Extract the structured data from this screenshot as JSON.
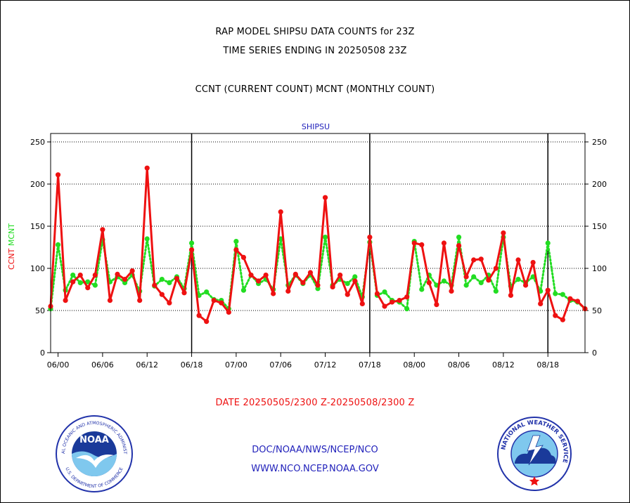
{
  "header": {
    "line1": "RAP MODEL SHIPSU DATA COUNTS for 23Z",
    "line2": "TIME SERIES ENDING IN 20250508 23Z",
    "line3": "CCNT (CURRENT COUNT) MCNT (MONTHLY COUNT)"
  },
  "footer": {
    "date_range": "DATE 20250505/2300 Z-20250508/2300 Z",
    "link1": "DOC/NOAA/NWS/NCEP/NCO",
    "link2": "WWW.NCO.NCEP.NOAA.GOV",
    "noaa_logo_text": "NOAA",
    "noaa_ring_text": "NATIONAL OCEANIC AND ATMOSPHERIC ADMINISTRATION",
    "noaa_ring_text_bottom": "U.S. DEPARTMENT OF COMMERCE",
    "nws_ring_text": "NATIONAL WEATHER SERVICE"
  },
  "colors": {
    "ccnt": "#ee1111",
    "mcnt": "#22dd22",
    "title": "#2222bb",
    "date": "#ee1111"
  },
  "chart_data": {
    "type": "line",
    "title": "SHIPSU",
    "ylabel_parts": [
      "CCNT",
      "MCNT"
    ],
    "xlabel": "",
    "ylim": [
      0,
      260
    ],
    "yticks": [
      0,
      50,
      100,
      150,
      200,
      250
    ],
    "x_ticks_hours": [
      0,
      6,
      12,
      18,
      24,
      30,
      36,
      42,
      48,
      54,
      60,
      66
    ],
    "x_tick_labels": [
      "06/00",
      "06/06",
      "06/12",
      "06/18",
      "07/00",
      "07/06",
      "07/12",
      "07/18",
      "08/00",
      "08/06",
      "08/12",
      "08/18"
    ],
    "day_boundaries_hours": [
      18,
      42,
      66
    ],
    "x_start_hour": -1,
    "x_end_hour": 71,
    "grid": true,
    "series": [
      {
        "name": "CCNT",
        "color": "#ee1111",
        "x": [
          -1,
          0,
          1,
          2,
          3,
          4,
          5,
          6,
          7,
          8,
          9,
          10,
          11,
          12,
          13,
          14,
          15,
          16,
          17,
          18,
          19,
          20,
          21,
          22,
          23,
          24,
          25,
          26,
          27,
          28,
          29,
          30,
          31,
          32,
          33,
          34,
          35,
          36,
          37,
          38,
          39,
          40,
          41,
          42,
          43,
          44,
          45,
          46,
          47,
          48,
          49,
          50,
          51,
          52,
          53,
          54,
          55,
          56,
          57,
          58,
          59,
          60,
          61,
          62,
          63,
          64,
          65,
          66,
          67,
          68,
          69,
          70,
          71
        ],
        "values": [
          55,
          211,
          62,
          84,
          92,
          77,
          92,
          146,
          62,
          93,
          87,
          97,
          62,
          219,
          80,
          69,
          59,
          88,
          71,
          122,
          44,
          37,
          62,
          59,
          48,
          122,
          113,
          92,
          85,
          92,
          70,
          167,
          73,
          93,
          83,
          95,
          80,
          184,
          78,
          92,
          69,
          85,
          58,
          137,
          70,
          55,
          60,
          62,
          66,
          130,
          128,
          83,
          57,
          130,
          73,
          127,
          90,
          110,
          111,
          86,
          100,
          142,
          68,
          110,
          80,
          107,
          58,
          74,
          44,
          39,
          64,
          61,
          52
        ]
      },
      {
        "name": "MCNT",
        "color": "#22dd22",
        "x": [
          -1,
          0,
          1,
          2,
          3,
          4,
          5,
          6,
          7,
          8,
          9,
          10,
          11,
          12,
          13,
          14,
          15,
          16,
          17,
          18,
          19,
          20,
          21,
          22,
          23,
          24,
          25,
          26,
          27,
          28,
          29,
          30,
          31,
          32,
          33,
          34,
          35,
          36,
          37,
          38,
          39,
          40,
          41,
          42,
          43,
          44,
          45,
          46,
          47,
          48,
          49,
          50,
          51,
          52,
          53,
          54,
          55,
          56,
          57,
          58,
          59,
          60,
          61,
          62,
          63,
          64,
          65,
          66,
          67,
          68,
          69,
          70,
          71
        ],
        "values": [
          52,
          128,
          74,
          92,
          83,
          84,
          80,
          134,
          84,
          90,
          83,
          92,
          73,
          135,
          79,
          87,
          83,
          90,
          76,
          130,
          68,
          72,
          63,
          62,
          52,
          132,
          74,
          92,
          82,
          87,
          75,
          135,
          80,
          92,
          82,
          92,
          76,
          137,
          80,
          87,
          82,
          90,
          66,
          131,
          68,
          72,
          62,
          60,
          52,
          132,
          75,
          92,
          80,
          85,
          80,
          137,
          80,
          90,
          83,
          92,
          73,
          137,
          79,
          87,
          83,
          90,
          73,
          130,
          70,
          69,
          62,
          60,
          52
        ]
      }
    ]
  }
}
